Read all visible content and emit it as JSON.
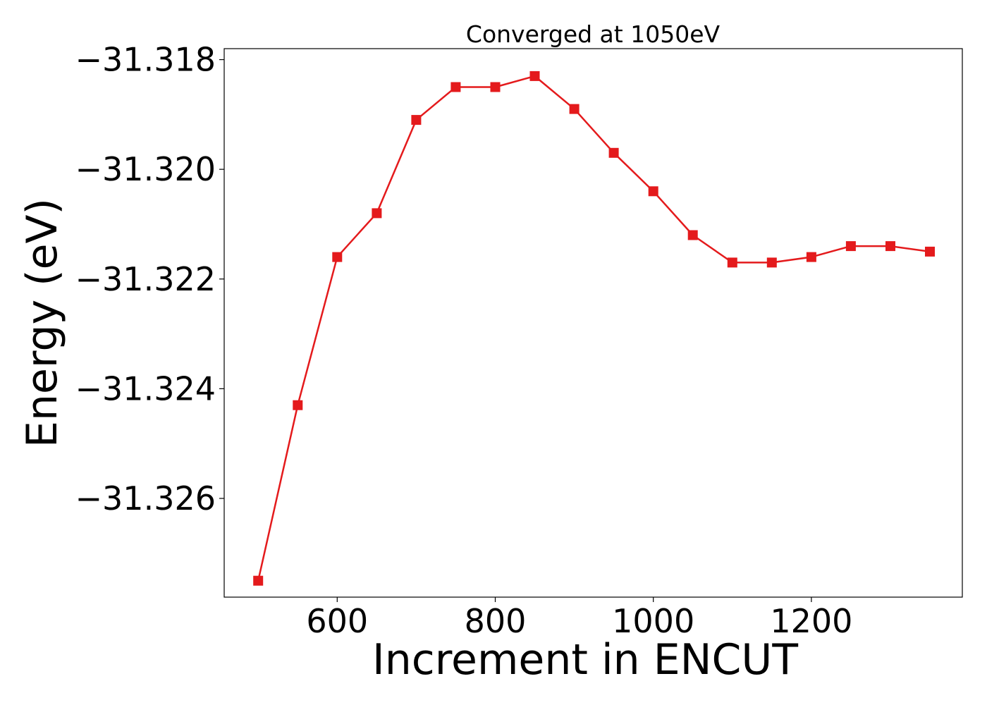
{
  "chart_data": {
    "type": "line",
    "title": "Converged at 1050eV",
    "xlabel": "Increment in ENCUT",
    "ylabel": "Energy (eV)",
    "xlim": [
      457,
      1391
    ],
    "ylim": [
      -31.3278,
      -31.3178
    ],
    "x_ticks": [
      600,
      800,
      1000,
      1200
    ],
    "x_tick_labels": [
      "600",
      "800",
      "1000",
      "1200"
    ],
    "y_ticks": [
      -31.326,
      -31.324,
      -31.322,
      -31.32,
      -31.318
    ],
    "y_tick_labels": [
      "−31.326",
      "−31.324",
      "−31.322",
      "−31.320",
      "−31.318"
    ],
    "grid": false,
    "series": [
      {
        "color": "#e41a1c",
        "marker": "square",
        "x": [
          500,
          550,
          600,
          650,
          700,
          750,
          800,
          850,
          900,
          950,
          1000,
          1050,
          1100,
          1150,
          1200,
          1250,
          1300,
          1350
        ],
        "y": [
          -31.3275,
          -31.3243,
          -31.3216,
          -31.3208,
          -31.3191,
          -31.3185,
          -31.3185,
          -31.3183,
          -31.3189,
          -31.3197,
          -31.3204,
          -31.3212,
          -31.3217,
          -31.3217,
          -31.3216,
          -31.3214,
          -31.3214,
          -31.3215
        ]
      }
    ]
  }
}
